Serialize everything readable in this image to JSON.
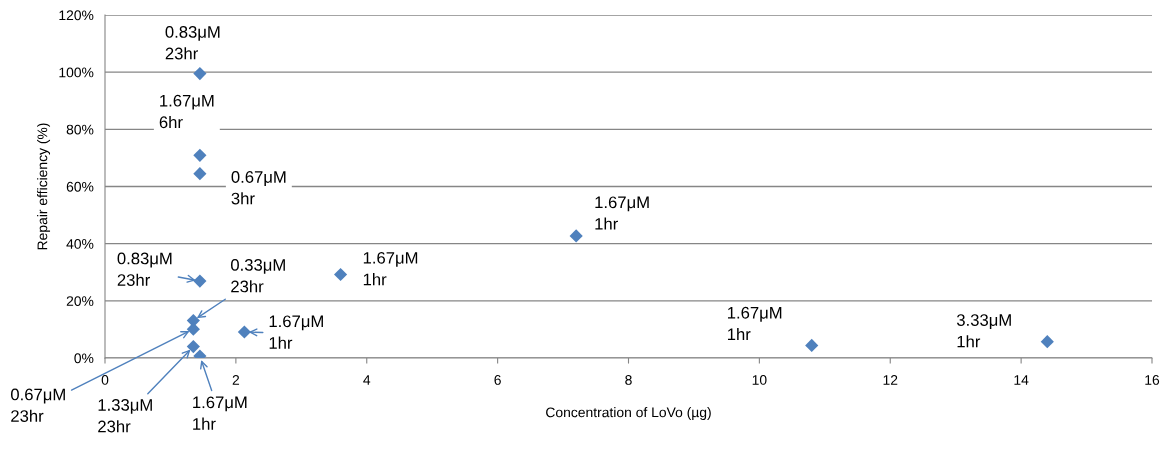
{
  "chart_data": {
    "type": "scatter",
    "xlabel": "Concentration of LoVo (µg)",
    "ylabel": "Repair efficiency (%)",
    "series": [
      {
        "color": "#4f81bd",
        "x": [
          1.45,
          1.45,
          1.45,
          7.2,
          1.45,
          1.35,
          3.6,
          2.13,
          1.35,
          1.35,
          1.45,
          10.8,
          14.4
        ],
        "values": [
          99.5,
          70.9,
          64.5,
          42.7,
          26.9,
          13.1,
          29.2,
          9.1,
          10.1,
          4.0,
          0.7,
          4.4,
          5.7
        ]
      }
    ],
    "marker": "diamond",
    "grid": "y",
    "xlim": [
      0,
      16
    ],
    "xticks": [
      0,
      2,
      4,
      6,
      8,
      10,
      12,
      14,
      16
    ],
    "ylim": [
      0,
      120
    ],
    "yticks": [
      {
        "value": 0,
        "label": "0%"
      },
      {
        "value": 20,
        "label": "20%"
      },
      {
        "value": 40,
        "label": "40%"
      },
      {
        "value": 60,
        "label": "60%"
      },
      {
        "value": 80,
        "label": "80%"
      },
      {
        "value": 100,
        "label": "100%"
      },
      {
        "value": 120,
        "label": "120%"
      }
    ],
    "annotations": [
      {
        "text": "0.83μM\n23hr",
        "x": 1.45,
        "y": 99.5
      },
      {
        "text": "1.67μM\n6hr",
        "x": 1.45,
        "y": 70.9
      },
      {
        "text": "0.67μM\n3hr",
        "x": 1.45,
        "y": 64.5
      },
      {
        "text": "1.67μM\n1hr",
        "x": 7.2,
        "y": 42.7
      },
      {
        "text": "0.83μM\n23hr",
        "x": 1.45,
        "y": 26.9
      },
      {
        "text": "0.33μM\n23hr",
        "x": 1.35,
        "y": 13.1
      },
      {
        "text": "1.67μM\n1hr",
        "x": 3.6,
        "y": 29.2
      },
      {
        "text": "1.67μM\n1hr",
        "x": 2.13,
        "y": 9.1
      },
      {
        "text": "0.67μM\n23hr",
        "x": 1.35,
        "y": 10.1
      },
      {
        "text": "1.33μM\n23hr",
        "x": 1.35,
        "y": 4.0
      },
      {
        "text": "1.67μM\n1hr",
        "x": 1.45,
        "y": 0.7
      },
      {
        "text": "1.67μM\n1hr",
        "x": 10.8,
        "y": 4.4
      },
      {
        "text": "3.33μM\n1hr",
        "x": 14.4,
        "y": 5.7
      }
    ]
  }
}
